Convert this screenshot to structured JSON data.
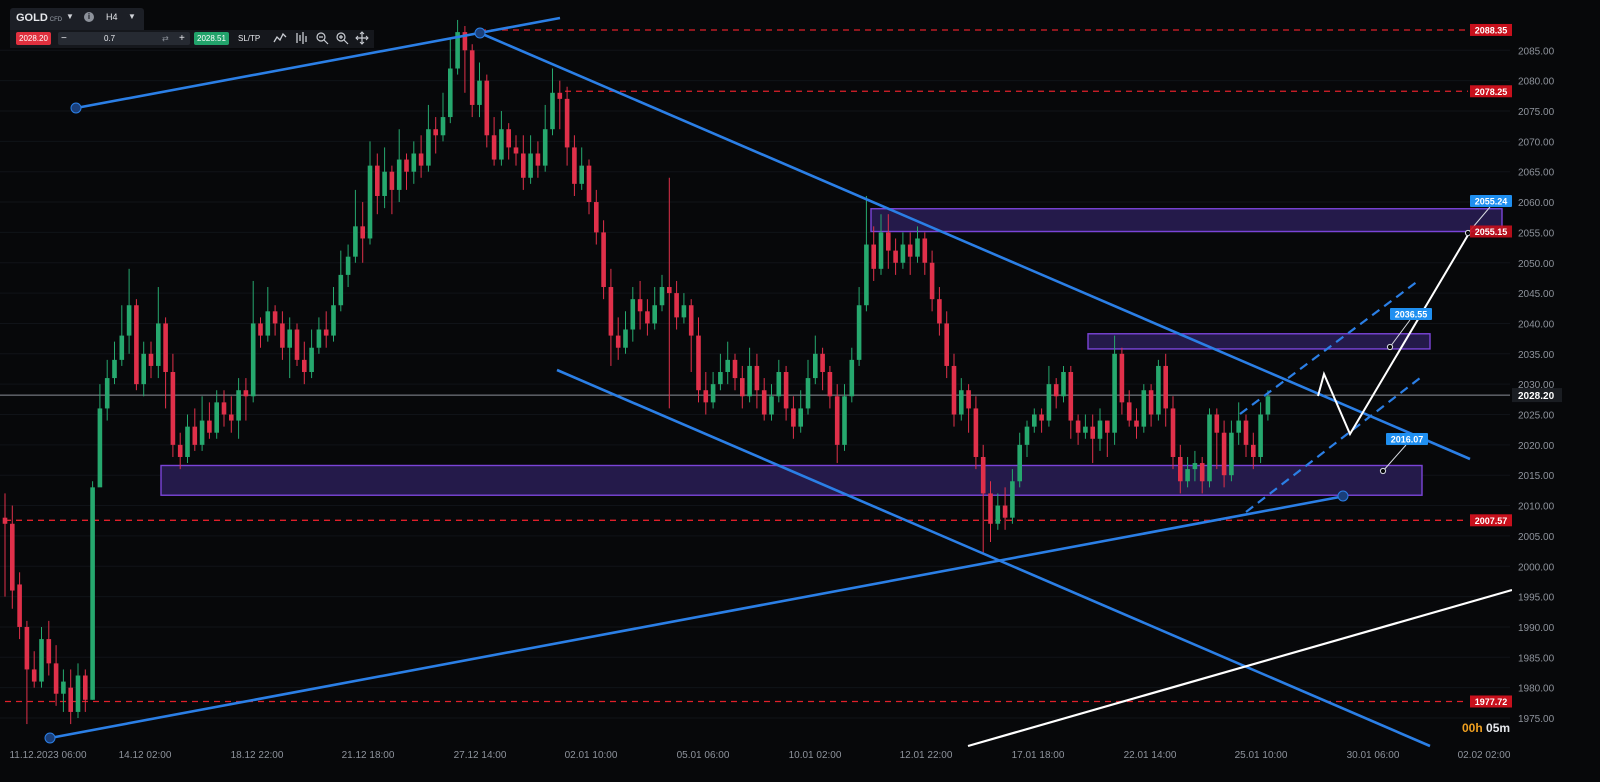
{
  "toolbar": {
    "symbol": "GOLD",
    "symbol_tag": "CFD",
    "timeframe": "H4",
    "bid_price": "2028.20",
    "ask_price": "2028.51",
    "quantity": "0.7",
    "minus_label": "−",
    "plus_label": "+",
    "sltp_label": "SL/TP",
    "icons": [
      "chart-type-icon",
      "indicators-icon",
      "zoom-out-icon",
      "zoom-in-icon",
      "crosshair-icon"
    ]
  },
  "countdown": {
    "hours": "00h",
    "minutes": "05m"
  },
  "colors": {
    "background": "#07080a",
    "bull": "#26a86e",
    "bear": "#e0304a",
    "trendline": "#2b7fe6",
    "level": "#e0202a",
    "zone_fill": "#241a4a",
    "zone_border": "#7a44d8",
    "projection": "#ffffff",
    "label_blue": "#1f8ff0",
    "label_red": "#c8101c"
  },
  "chart_data": {
    "type": "candlestick",
    "symbol": "GOLD",
    "timeframe": "H4",
    "ylim": [
      1972,
      2093
    ],
    "y_ticks": [
      1975.0,
      1980.0,
      1985.0,
      1990.0,
      1995.0,
      2000.0,
      2005.0,
      2010.0,
      2015.0,
      2020.0,
      2025.0,
      2030.0,
      2035.0,
      2040.0,
      2045.0,
      2050.0,
      2055.0,
      2060.0,
      2065.0,
      2070.0,
      2075.0,
      2080.0,
      2085.0
    ],
    "x_ticks": [
      "11.12.2023 06:00",
      "14.12 02:00",
      "18.12 22:00",
      "21.12 18:00",
      "27.12 14:00",
      "02.01 10:00",
      "05.01 06:00",
      "10.01 02:00",
      "12.01 22:00",
      "17.01 18:00",
      "22.01 14:00",
      "25.01 10:00",
      "30.01 06:00",
      "02.02 02:00"
    ],
    "current_price": 2028.2,
    "horizontal_levels": [
      2088.35,
      2078.25,
      2007.57,
      1977.72
    ],
    "zones": [
      {
        "from": 2055.15,
        "to": 2058.9
      },
      {
        "from": 2035.8,
        "to": 2038.3
      },
      {
        "from": 2011.7,
        "to": 2016.6
      }
    ],
    "target_labels": [
      2055.24,
      2036.55,
      2016.07
    ],
    "projection_path": [
      2028.5,
      2032.0,
      2021.8,
      2055.2
    ],
    "candles": [
      [
        2008,
        2007,
        2012,
        1995
      ],
      [
        2007,
        1996,
        2010,
        1993
      ],
      [
        1997,
        1990,
        1999,
        1988
      ],
      [
        1990,
        1983,
        1991,
        1974
      ],
      [
        1983,
        1981,
        1986,
        1980
      ],
      [
        1981,
        1988,
        1990,
        1980
      ],
      [
        1988,
        1984,
        1991,
        1982
      ],
      [
        1984,
        1979,
        1987,
        1977
      ],
      [
        1979,
        1981,
        1983,
        1976
      ],
      [
        1980,
        1976,
        1983,
        1974
      ],
      [
        1976,
        1982,
        1984,
        1975
      ],
      [
        1982,
        1978,
        1983,
        1976
      ],
      [
        1978,
        2013,
        2014,
        1978
      ],
      [
        2013,
        2026,
        2030,
        2025
      ],
      [
        2026,
        2031,
        2034,
        2024
      ],
      [
        2031,
        2034,
        2037,
        2030
      ],
      [
        2034,
        2038,
        2043,
        2033
      ],
      [
        2038,
        2043,
        2049,
        2035
      ],
      [
        2043,
        2030,
        2044,
        2029
      ],
      [
        2030,
        2035,
        2037,
        2028
      ],
      [
        2035,
        2033,
        2037,
        2031
      ],
      [
        2033,
        2040,
        2046,
        2031
      ],
      [
        2040,
        2032,
        2041,
        2026
      ],
      [
        2032,
        2020,
        2035,
        2018
      ],
      [
        2020,
        2018,
        2022,
        2016
      ],
      [
        2018,
        2023,
        2025,
        2017
      ],
      [
        2023,
        2020,
        2026,
        2019
      ],
      [
        2020,
        2024,
        2028,
        2019
      ],
      [
        2024,
        2022,
        2027,
        2021
      ],
      [
        2022,
        2027,
        2029,
        2021
      ],
      [
        2027,
        2025,
        2029,
        2023
      ],
      [
        2025,
        2024,
        2028,
        2022
      ],
      [
        2024,
        2029,
        2031,
        2021
      ],
      [
        2029,
        2028,
        2031,
        2024
      ],
      [
        2028,
        2040,
        2047,
        2027
      ],
      [
        2040,
        2038,
        2041,
        2036
      ],
      [
        2038,
        2042,
        2046,
        2037
      ],
      [
        2042,
        2040,
        2043,
        2038
      ],
      [
        2040,
        2036,
        2042,
        2034
      ],
      [
        2036,
        2039,
        2041,
        2031
      ],
      [
        2039,
        2034,
        2040,
        2033
      ],
      [
        2034,
        2032,
        2037,
        2030
      ],
      [
        2032,
        2036,
        2039,
        2031
      ],
      [
        2036,
        2039,
        2041,
        2035
      ],
      [
        2039,
        2038,
        2042,
        2036
      ],
      [
        2038,
        2043,
        2046,
        2037
      ],
      [
        2043,
        2048,
        2052,
        2042
      ],
      [
        2048,
        2051,
        2053,
        2046
      ],
      [
        2051,
        2056,
        2062,
        2050
      ],
      [
        2056,
        2054,
        2060,
        2050
      ],
      [
        2054,
        2066,
        2070,
        2053
      ],
      [
        2066,
        2061,
        2068,
        2058
      ],
      [
        2061,
        2065,
        2069,
        2059
      ],
      [
        2065,
        2062,
        2066,
        2058
      ],
      [
        2062,
        2067,
        2072,
        2060
      ],
      [
        2067,
        2065,
        2068,
        2062
      ],
      [
        2065,
        2068,
        2070,
        2063
      ],
      [
        2068,
        2066,
        2071,
        2064
      ],
      [
        2066,
        2072,
        2076,
        2065
      ],
      [
        2072,
        2071,
        2074,
        2068
      ],
      [
        2071,
        2074,
        2078,
        2070
      ],
      [
        2074,
        2082,
        2087,
        2073
      ],
      [
        2082,
        2088,
        2090,
        2081
      ],
      [
        2088,
        2085,
        2089,
        2078
      ],
      [
        2085,
        2076,
        2086,
        2074
      ],
      [
        2076,
        2080,
        2083,
        2074
      ],
      [
        2080,
        2071,
        2081,
        2069
      ],
      [
        2071,
        2067,
        2074,
        2066
      ],
      [
        2067,
        2072,
        2075,
        2066
      ],
      [
        2072,
        2069,
        2073,
        2067
      ],
      [
        2069,
        2068,
        2071,
        2066
      ],
      [
        2068,
        2064,
        2071,
        2062
      ],
      [
        2064,
        2068,
        2071,
        2063
      ],
      [
        2068,
        2066,
        2070,
        2064
      ],
      [
        2066,
        2072,
        2076,
        2065
      ],
      [
        2072,
        2078,
        2082,
        2071
      ],
      [
        2078,
        2077,
        2080,
        2072
      ],
      [
        2077,
        2069,
        2079,
        2066
      ],
      [
        2069,
        2063,
        2071,
        2061
      ],
      [
        2063,
        2066,
        2069,
        2062
      ],
      [
        2066,
        2060,
        2067,
        2058
      ],
      [
        2060,
        2055,
        2062,
        2053
      ],
      [
        2055,
        2046,
        2057,
        2044
      ],
      [
        2046,
        2038,
        2049,
        2033
      ],
      [
        2038,
        2036,
        2041,
        2034
      ],
      [
        2036,
        2039,
        2042,
        2035
      ],
      [
        2039,
        2044,
        2046,
        2037
      ],
      [
        2044,
        2042,
        2047,
        2039
      ],
      [
        2042,
        2040,
        2044,
        2038
      ],
      [
        2040,
        2043,
        2046,
        2039
      ],
      [
        2043,
        2046,
        2048,
        2042
      ],
      [
        2046,
        2045,
        2064,
        2026
      ],
      [
        2045,
        2041,
        2047,
        2039
      ],
      [
        2041,
        2043,
        2045,
        2040
      ],
      [
        2043,
        2038,
        2044,
        2032
      ],
      [
        2038,
        2029,
        2041,
        2027
      ],
      [
        2029,
        2027,
        2032,
        2025
      ],
      [
        2027,
        2030,
        2032,
        2026
      ],
      [
        2030,
        2032,
        2035,
        2029
      ],
      [
        2032,
        2034,
        2037,
        2030
      ],
      [
        2034,
        2031,
        2035,
        2029
      ],
      [
        2031,
        2028,
        2033,
        2026
      ],
      [
        2028,
        2033,
        2036,
        2027
      ],
      [
        2033,
        2029,
        2035,
        2026
      ],
      [
        2029,
        2025,
        2031,
        2024
      ],
      [
        2025,
        2028,
        2030,
        2024
      ],
      [
        2028,
        2032,
        2034,
        2027
      ],
      [
        2032,
        2026,
        2033,
        2024
      ],
      [
        2026,
        2023,
        2028,
        2021
      ],
      [
        2023,
        2026,
        2029,
        2022
      ],
      [
        2026,
        2031,
        2034,
        2025
      ],
      [
        2031,
        2035,
        2038,
        2030
      ],
      [
        2035,
        2032,
        2036,
        2029
      ],
      [
        2032,
        2028,
        2033,
        2026
      ],
      [
        2028,
        2020,
        2030,
        2017
      ],
      [
        2020,
        2028,
        2030,
        2019
      ],
      [
        2028,
        2034,
        2036,
        2027
      ],
      [
        2034,
        2043,
        2046,
        2033
      ],
      [
        2043,
        2053,
        2061,
        2042
      ],
      [
        2053,
        2049,
        2056,
        2047
      ],
      [
        2049,
        2055,
        2058,
        2048
      ],
      [
        2055,
        2052,
        2058,
        2049
      ],
      [
        2052,
        2050,
        2054,
        2048
      ],
      [
        2050,
        2053,
        2055,
        2049
      ],
      [
        2053,
        2051,
        2055,
        2048
      ],
      [
        2051,
        2054,
        2056,
        2050
      ],
      [
        2054,
        2050,
        2055,
        2048
      ],
      [
        2050,
        2044,
        2052,
        2042
      ],
      [
        2044,
        2040,
        2046,
        2038
      ],
      [
        2040,
        2033,
        2042,
        2031
      ],
      [
        2033,
        2025,
        2035,
        2023
      ],
      [
        2025,
        2029,
        2031,
        2024
      ],
      [
        2029,
        2026,
        2030,
        2022
      ],
      [
        2026,
        2018,
        2028,
        2016
      ],
      [
        2018,
        2012,
        2020,
        2002
      ],
      [
        2012,
        2007,
        2014,
        2004
      ],
      [
        2007,
        2010,
        2012,
        2006
      ],
      [
        2010,
        2008,
        2013,
        2006
      ],
      [
        2008,
        2014,
        2016,
        2007
      ],
      [
        2014,
        2020,
        2022,
        2013
      ],
      [
        2020,
        2023,
        2024,
        2018
      ],
      [
        2023,
        2025,
        2026,
        2022
      ],
      [
        2025,
        2024,
        2026,
        2022
      ],
      [
        2024,
        2030,
        2033,
        2023
      ],
      [
        2030,
        2028,
        2031,
        2026
      ],
      [
        2028,
        2032,
        2033,
        2027
      ],
      [
        2032,
        2024,
        2033,
        2021
      ],
      [
        2024,
        2022,
        2025,
        2020
      ],
      [
        2022,
        2023,
        2025,
        2021
      ],
      [
        2023,
        2021,
        2025,
        2017
      ],
      [
        2021,
        2024,
        2026,
        2019
      ],
      [
        2024,
        2022,
        2024,
        2018
      ],
      [
        2022,
        2035,
        2038,
        2020
      ],
      [
        2035,
        2027,
        2036,
        2025
      ],
      [
        2027,
        2024,
        2029,
        2023
      ],
      [
        2024,
        2023,
        2026,
        2021
      ],
      [
        2023,
        2029,
        2030,
        2022
      ],
      [
        2029,
        2025,
        2030,
        2023
      ],
      [
        2025,
        2033,
        2034,
        2024
      ],
      [
        2033,
        2026,
        2035,
        2023
      ],
      [
        2026,
        2018,
        2028,
        2016
      ],
      [
        2018,
        2014,
        2020,
        2012
      ],
      [
        2014,
        2016,
        2018,
        2013
      ],
      [
        2016,
        2017,
        2019,
        2014
      ],
      [
        2017,
        2014,
        2018,
        2012
      ],
      [
        2014,
        2025,
        2026,
        2013
      ],
      [
        2025,
        2022,
        2026,
        2016
      ],
      [
        2022,
        2015,
        2024,
        2013
      ],
      [
        2015,
        2022,
        2024,
        2014
      ],
      [
        2022,
        2024,
        2027,
        2020
      ],
      [
        2024,
        2020,
        2025,
        2018
      ],
      [
        2020,
        2018,
        2022,
        2016
      ],
      [
        2018,
        2025,
        2027,
        2017
      ],
      [
        2025,
        2028,
        2029,
        2024
      ]
    ]
  }
}
